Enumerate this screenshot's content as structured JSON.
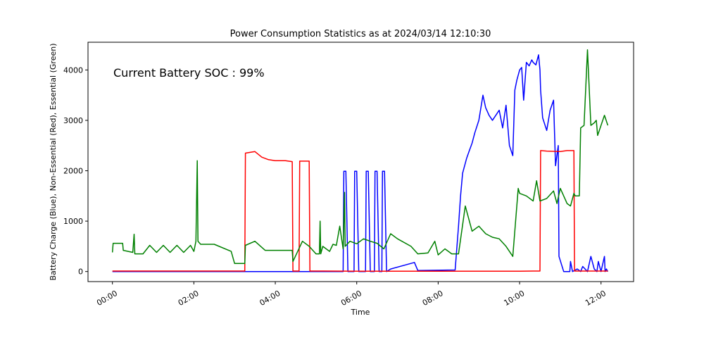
{
  "chart_data": {
    "type": "line",
    "title": "Power Consumption Statistics as at 2024/03/14 12:10:30",
    "xlabel": "Time",
    "ylabel": "Battery Charge (Blue), Non-Essential (Red), Essential (Green)",
    "annotation": "Current Battery SOC : 99%",
    "xlim": [
      "-00:36",
      "12:48"
    ],
    "ylim": [
      -200,
      4550
    ],
    "x_ticks": [
      "00:00",
      "02:00",
      "04:00",
      "06:00",
      "08:00",
      "10:00",
      "12:00"
    ],
    "y_ticks": [
      0,
      1000,
      2000,
      3000,
      4000
    ],
    "grid": false,
    "series": [
      {
        "color": "#0000ff",
        "x": [
          "00:00",
          "03:15",
          "05:40",
          "05:41",
          "05:44",
          "05:47",
          "05:56",
          "05:57",
          "06:00",
          "06:03",
          "06:13",
          "06:14",
          "06:17",
          "06:20",
          "06:26",
          "06:27",
          "06:30",
          "06:33",
          "06:37",
          "06:38",
          "06:41",
          "06:44",
          "06:50",
          "07:25",
          "07:30",
          "08:25",
          "08:30",
          "08:33",
          "08:36",
          "08:42",
          "08:46",
          "08:50",
          "08:54",
          "09:00",
          "09:06",
          "09:10",
          "09:15",
          "09:20",
          "09:30",
          "09:35",
          "09:40",
          "09:45",
          "09:50",
          "09:53",
          "09:56",
          "10:00",
          "10:03",
          "10:06",
          "10:10",
          "10:14",
          "10:18",
          "10:20",
          "10:24",
          "10:28",
          "10:30",
          "10:31",
          "10:34",
          "10:40",
          "10:45",
          "10:50",
          "10:53",
          "10:57",
          "10:58",
          "11:05",
          "11:14",
          "11:15",
          "11:18",
          "11:25",
          "11:30",
          "11:33",
          "11:40",
          "11:45",
          "11:50",
          "11:54",
          "11:56",
          "12:00",
          "12:05",
          "12:06",
          "12:08",
          "12:10"
        ],
        "values": [
          0,
          0,
          0,
          1990,
          1990,
          0,
          0,
          1990,
          1990,
          0,
          0,
          1990,
          1990,
          0,
          0,
          1990,
          1990,
          0,
          0,
          1990,
          1990,
          0,
          50,
          180,
          20,
          30,
          900,
          1500,
          1950,
          2250,
          2400,
          2550,
          2750,
          3000,
          3500,
          3250,
          3100,
          3000,
          3200,
          2850,
          3300,
          2500,
          2300,
          3600,
          3800,
          4000,
          4050,
          3400,
          4150,
          4080,
          4200,
          4150,
          4100,
          4300,
          4000,
          3600,
          3050,
          2800,
          3200,
          3400,
          2100,
          2500,
          300,
          0,
          0,
          200,
          0,
          50,
          0,
          100,
          0,
          300,
          50,
          0,
          200,
          0,
          300,
          0,
          50,
          0
        ]
      },
      {
        "color": "#ff0000",
        "x": [
          "00:00",
          "03:15",
          "03:16",
          "03:30",
          "03:40",
          "03:50",
          "04:00",
          "04:15",
          "04:25",
          "04:26",
          "04:35",
          "04:36",
          "04:50",
          "04:51",
          "04:55",
          "04:56",
          "05:10",
          "06:00",
          "08:00",
          "09:00",
          "10:00",
          "10:20",
          "10:30",
          "10:31",
          "10:40",
          "11:00",
          "11:10",
          "11:20",
          "11:21",
          "11:30",
          "12:10"
        ],
        "values": [
          10,
          10,
          2350,
          2380,
          2270,
          2220,
          2200,
          2200,
          2180,
          10,
          10,
          2190,
          2190,
          10,
          10,
          10,
          10,
          5,
          5,
          5,
          5,
          10,
          10,
          2400,
          2390,
          2380,
          2400,
          2400,
          10,
          10,
          10
        ]
      },
      {
        "color": "#008000",
        "x": [
          "00:00",
          "00:01",
          "00:15",
          "00:16",
          "00:30",
          "00:32",
          "00:33",
          "00:45",
          "00:55",
          "01:05",
          "01:15",
          "01:25",
          "01:35",
          "01:45",
          "01:55",
          "02:00",
          "02:03",
          "02:05",
          "02:06",
          "02:10",
          "02:30",
          "02:55",
          "03:00",
          "03:15",
          "03:16",
          "03:30",
          "03:45",
          "04:00",
          "04:15",
          "04:25",
          "04:26",
          "04:40",
          "04:50",
          "05:00",
          "05:05",
          "05:06",
          "05:07",
          "05:10",
          "05:15",
          "05:20",
          "05:25",
          "05:30",
          "05:35",
          "05:40",
          "05:42",
          "05:43",
          "05:50",
          "06:00",
          "06:10",
          "06:20",
          "06:30",
          "06:40",
          "06:50",
          "07:00",
          "07:20",
          "07:30",
          "07:45",
          "07:55",
          "08:00",
          "08:10",
          "08:20",
          "08:30",
          "08:40",
          "08:50",
          "09:00",
          "09:10",
          "09:20",
          "09:30",
          "09:40",
          "09:50",
          "09:58",
          "10:00",
          "10:10",
          "10:20",
          "10:25",
          "10:30",
          "10:40",
          "10:50",
          "10:55",
          "11:00",
          "11:10",
          "11:15",
          "11:20",
          "11:22",
          "11:25",
          "11:28",
          "11:30",
          "11:35",
          "11:40",
          "11:45",
          "11:50",
          "11:53",
          "11:55",
          "12:05",
          "12:10"
        ],
        "values": [
          380,
          560,
          560,
          420,
          380,
          740,
          350,
          350,
          520,
          380,
          520,
          380,
          520,
          380,
          520,
          400,
          600,
          2200,
          600,
          540,
          540,
          400,
          160,
          160,
          520,
          600,
          420,
          420,
          420,
          420,
          200,
          600,
          500,
          350,
          350,
          1000,
          350,
          500,
          450,
          400,
          540,
          520,
          900,
          450,
          1570,
          500,
          600,
          550,
          650,
          600,
          560,
          450,
          750,
          650,
          500,
          350,
          370,
          600,
          330,
          450,
          350,
          350,
          1300,
          800,
          900,
          750,
          680,
          650,
          500,
          300,
          1650,
          1550,
          1500,
          1400,
          1800,
          1400,
          1450,
          1600,
          1350,
          1650,
          1350,
          1300,
          1550,
          1500,
          1500,
          1500,
          2850,
          2900,
          4400,
          2900,
          2950,
          3000,
          2700,
          3100,
          2900
        ]
      }
    ]
  }
}
